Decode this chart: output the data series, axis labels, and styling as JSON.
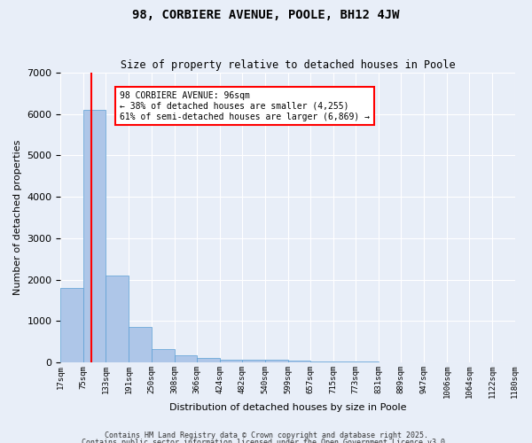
{
  "title": "98, CORBIERE AVENUE, POOLE, BH12 4JW",
  "subtitle": "Size of property relative to detached houses in Poole",
  "xlabel": "Distribution of detached houses by size in Poole",
  "ylabel": "Number of detached properties",
  "bar_color": "#aec6e8",
  "bar_edge_color": "#5a9fd4",
  "background_color": "#e8eef8",
  "grid_color": "#ffffff",
  "bin_labels": [
    "17sqm",
    "75sqm",
    "133sqm",
    "191sqm",
    "250sqm",
    "308sqm",
    "366sqm",
    "424sqm",
    "482sqm",
    "540sqm",
    "599sqm",
    "657sqm",
    "715sqm",
    "773sqm",
    "831sqm",
    "889sqm",
    "947sqm",
    "1006sqm",
    "1064sqm",
    "1122sqm",
    "1180sqm"
  ],
  "bar_heights": [
    1800,
    6100,
    2100,
    850,
    330,
    175,
    100,
    75,
    60,
    55,
    50,
    30,
    20,
    15,
    10,
    8,
    5,
    4,
    3,
    2
  ],
  "bin_edges": [
    17,
    75,
    133,
    191,
    250,
    308,
    366,
    424,
    482,
    540,
    599,
    657,
    715,
    773,
    831,
    889,
    947,
    1006,
    1064,
    1122,
    1180
  ],
  "red_line_x": 96,
  "annotation_title": "98 CORBIERE AVENUE: 96sqm",
  "annotation_line1": "← 38% of detached houses are smaller (4,255)",
  "annotation_line2": "61% of semi-detached houses are larger (6,869) →",
  "annotation_box_color": "#cc0000",
  "ylim": [
    0,
    7000
  ],
  "footer1": "Contains HM Land Registry data © Crown copyright and database right 2025.",
  "footer2": "Contains public sector information licensed under the Open Government Licence v3.0."
}
